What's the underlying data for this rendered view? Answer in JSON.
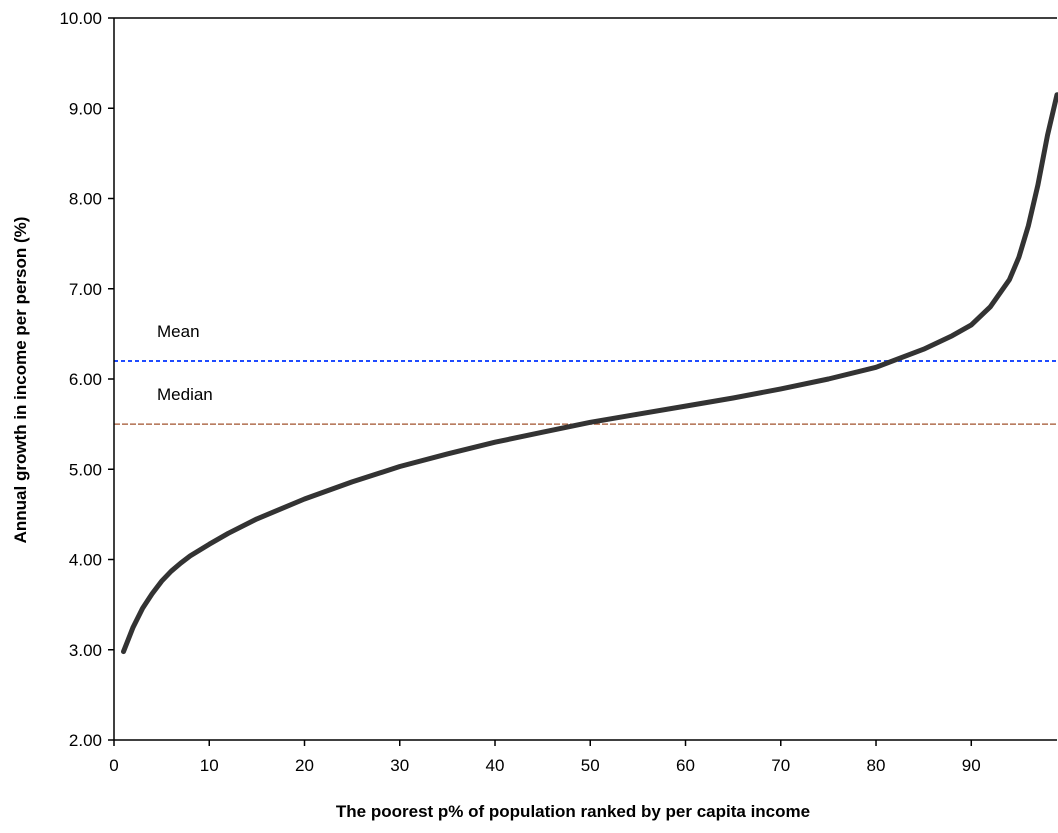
{
  "chart_data": {
    "type": "line",
    "title": "",
    "xlabel": "The poorest p% of population ranked by per capita income",
    "ylabel": "Annual growth in income per person (%)",
    "xlim": [
      0,
      99
    ],
    "ylim": [
      2,
      10
    ],
    "xticks": [
      "0",
      "10",
      "20",
      "30",
      "40",
      "50",
      "60",
      "70",
      "80",
      "90"
    ],
    "yticks": [
      "2.00",
      "3.00",
      "4.00",
      "5.00",
      "6.00",
      "7.00",
      "8.00",
      "9.00",
      "10.00"
    ],
    "grid": false,
    "series": [
      {
        "x": [
          1,
          2,
          3,
          4,
          5,
          6,
          7,
          8,
          10,
          12,
          15,
          20,
          25,
          30,
          35,
          40,
          45,
          50,
          55,
          60,
          65,
          70,
          75,
          80,
          85,
          88,
          90,
          92,
          94,
          95,
          96,
          97,
          98,
          99
        ],
        "y": [
          2.98,
          3.25,
          3.46,
          3.62,
          3.76,
          3.87,
          3.96,
          4.04,
          4.17,
          4.29,
          4.45,
          4.67,
          4.86,
          5.03,
          5.17,
          5.3,
          5.41,
          5.52,
          5.61,
          5.7,
          5.79,
          5.89,
          6.0,
          6.13,
          6.33,
          6.48,
          6.6,
          6.8,
          7.1,
          7.35,
          7.7,
          8.15,
          8.7,
          9.15
        ],
        "color": "#333333"
      }
    ],
    "reference_lines": [
      {
        "label": "Mean",
        "y": 6.2,
        "color": "#1f4bff",
        "style": "dotted"
      },
      {
        "label": "Median",
        "y": 5.5,
        "color": "#a0522d",
        "style": "dashed"
      }
    ]
  }
}
